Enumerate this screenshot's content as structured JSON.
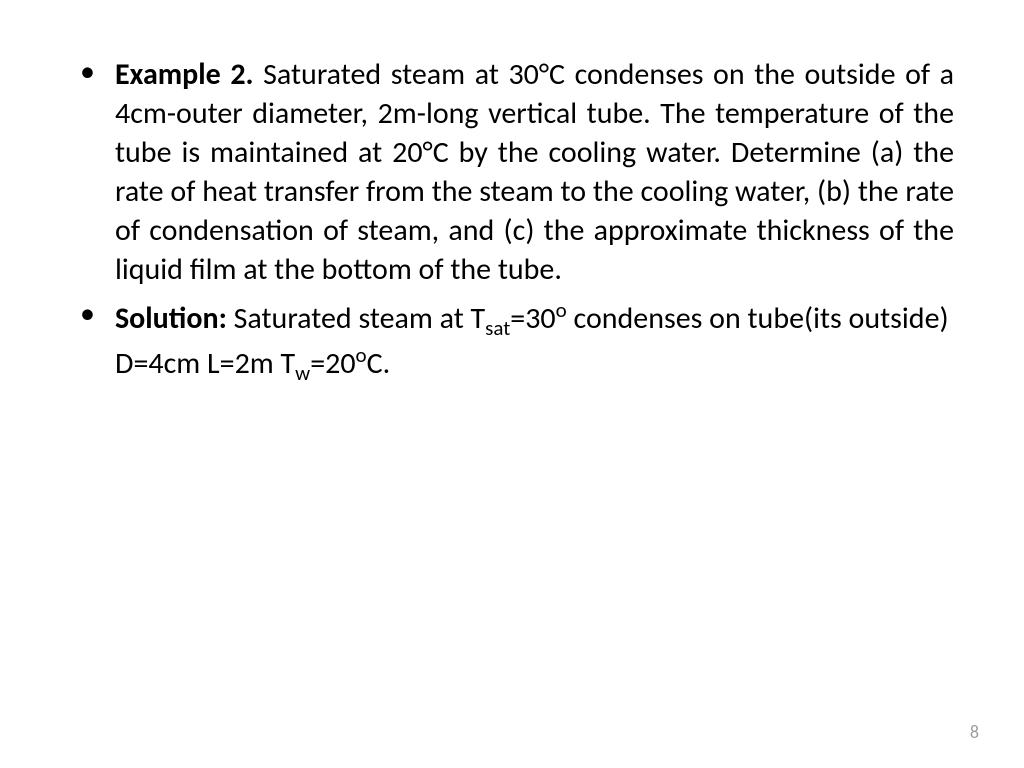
{
  "content": {
    "example_label": "Example 2.",
    "problem_statement": " Saturated steam at 30°C condenses on the outside of a 4cm-outer diameter, 2m-long vertical tube. The temperature of the tube is maintained at 20°C by the cooling water. Determine (a) the rate of heat transfer from the steam to the cooling water, (b) the rate of condensation of steam, and (c) the approximate thickness of the liquid film at the bottom of the tube.",
    "solution_label": "Solution:",
    "solution_part1": " Saturated steam at T",
    "solution_sub1": "sat",
    "solution_part2": "=30",
    "solution_sup1": "o",
    "solution_part3": " condenses on tube(its outside) D=4cm L=2m T",
    "solution_sub2": "w",
    "solution_part4": "=20",
    "solution_sup2": "o",
    "solution_part5": "C."
  },
  "page_number": "8",
  "styles": {
    "background_color": "#ffffff",
    "text_color": "#000000",
    "page_number_color": "#9c9c9c",
    "body_fontsize": 30,
    "page_number_fontsize": 18,
    "font_family": "Calibri"
  }
}
